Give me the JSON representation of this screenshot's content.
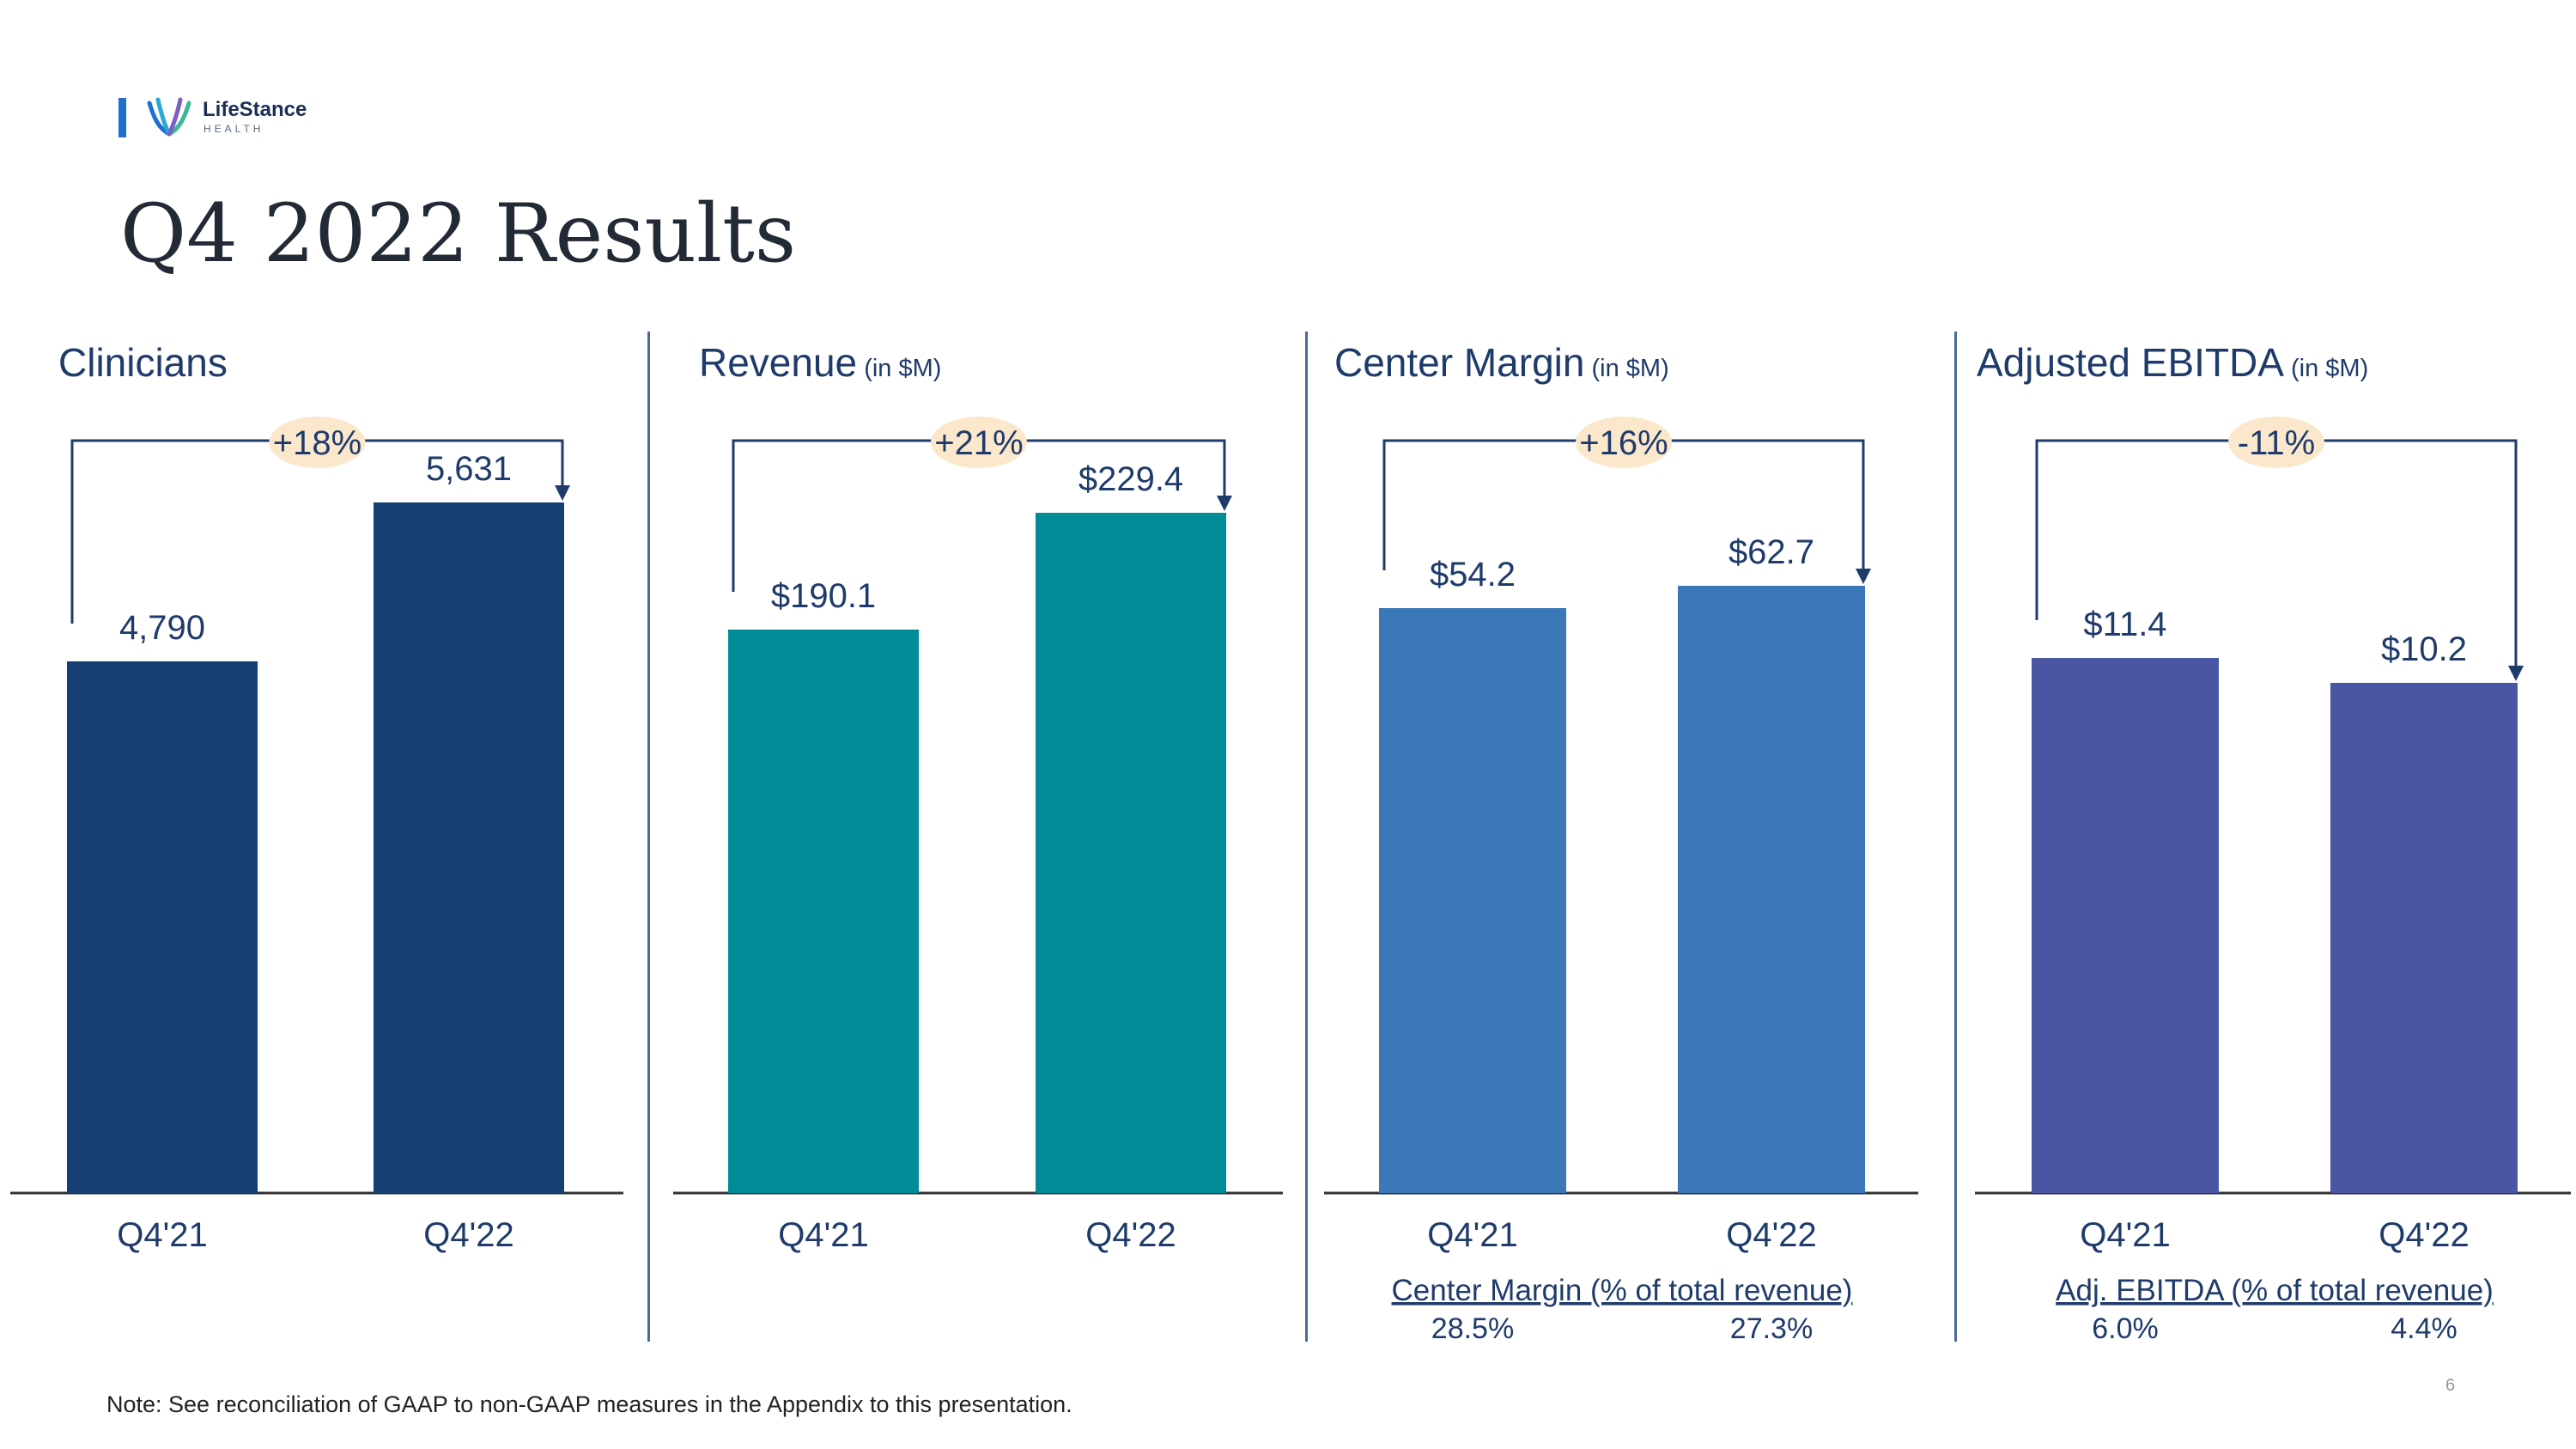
{
  "logo": {
    "name": "LifeStance",
    "sub": "HEALTH"
  },
  "page": {
    "title": "Q4 2022 Results",
    "number": "6"
  },
  "note": "Note:  See reconciliation of GAAP to non-GAAP measures in the Appendix to this presentation.",
  "colors": {
    "clinicians": "#143f73",
    "revenue": "#028a96",
    "center_margin": "#3a78b8",
    "ebitda": "#4a56a4",
    "label": "#1f3b6b",
    "badge": "#fbe8cc"
  },
  "chart_data": [
    {
      "type": "bar",
      "title": "Clinicians",
      "unit": "",
      "categories": [
        "Q4'21",
        "Q4'22"
      ],
      "values": [
        4790,
        5631
      ],
      "value_labels": [
        "4,790",
        "5,631"
      ],
      "change": "+18%",
      "color": "#143f73"
    },
    {
      "type": "bar",
      "title": "Revenue",
      "unit": "(in $M)",
      "categories": [
        "Q4'21",
        "Q4'22"
      ],
      "values": [
        190.1,
        229.4
      ],
      "value_labels": [
        "$190.1",
        "$229.4"
      ],
      "change": "+21%",
      "color": "#028a96"
    },
    {
      "type": "bar",
      "title": "Center Margin",
      "unit": "(in $M)",
      "categories": [
        "Q4'21",
        "Q4'22"
      ],
      "values": [
        54.2,
        62.7
      ],
      "value_labels": [
        "$54.2",
        "$62.7"
      ],
      "change": "+16%",
      "color": "#3a78b8",
      "footnote": {
        "label": "Center Margin (% of total revenue)",
        "values": [
          "28.5%",
          "27.3%"
        ]
      }
    },
    {
      "type": "bar",
      "title": "Adjusted EBITDA",
      "unit": "(in $M)",
      "categories": [
        "Q4'21",
        "Q4'22"
      ],
      "values": [
        11.4,
        10.2
      ],
      "value_labels": [
        "$11.4",
        "$10.2"
      ],
      "change": "-11%",
      "color": "#4a56a4",
      "footnote": {
        "label": "Adj. EBITDA (% of total revenue)",
        "values": [
          "6.0%",
          "4.4%"
        ]
      }
    }
  ]
}
